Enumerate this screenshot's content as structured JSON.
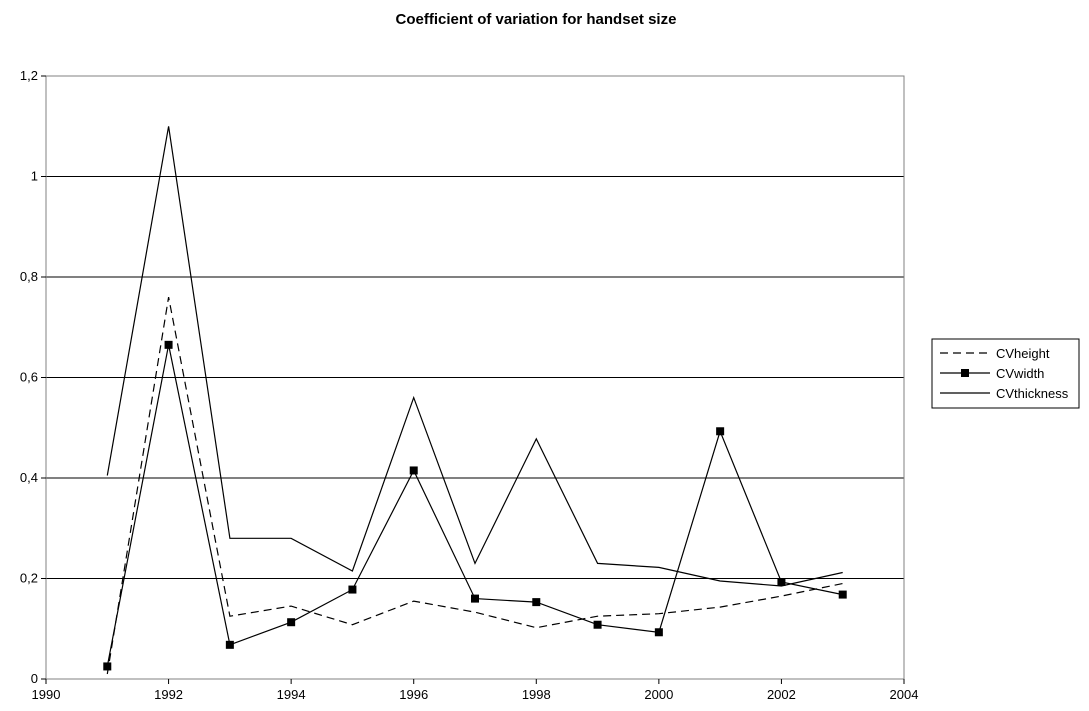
{
  "chart_data": {
    "type": "line",
    "title": "Coefficient of variation for handset size",
    "xlabel": "",
    "ylabel": "",
    "xlim": [
      1990,
      2004
    ],
    "ylim": [
      0,
      1.2
    ],
    "x_ticks": [
      1990,
      1992,
      1994,
      1996,
      1998,
      2000,
      2002,
      2004
    ],
    "y_ticks": [
      0,
      0.2,
      0.4,
      0.6,
      0.8,
      1.0,
      1.2
    ],
    "y_tick_labels": [
      "0",
      "0,2",
      "0,4",
      "0,6",
      "0,8",
      "1",
      "1,2"
    ],
    "grid": "horizontal",
    "legend_position": "right",
    "series": [
      {
        "name": "CVheight",
        "style": "dashed",
        "marker": "none",
        "x": [
          1991,
          1992,
          1993,
          1994,
          1995,
          1996,
          1997,
          1998,
          1999,
          2000,
          2001,
          2002,
          2003
        ],
        "values": [
          0.01,
          0.76,
          0.125,
          0.145,
          0.108,
          0.155,
          0.133,
          0.102,
          0.125,
          0.13,
          0.143,
          0.165,
          0.19
        ]
      },
      {
        "name": "CVwidth",
        "style": "solid",
        "marker": "square",
        "x": [
          1991,
          1992,
          1993,
          1994,
          1995,
          1996,
          1997,
          1998,
          1999,
          2000,
          2001,
          2002,
          2003
        ],
        "values": [
          0.025,
          0.665,
          0.068,
          0.113,
          0.178,
          0.415,
          0.16,
          0.153,
          0.108,
          0.093,
          0.493,
          0.193,
          0.168
        ]
      },
      {
        "name": "CVthickness",
        "style": "solid",
        "marker": "none",
        "x": [
          1991,
          1992,
          1993,
          1994,
          1995,
          1996,
          1997,
          1998,
          1999,
          2000,
          2001,
          2002,
          2003
        ],
        "values": [
          0.405,
          1.1,
          0.28,
          0.28,
          0.215,
          0.56,
          0.23,
          0.478,
          0.23,
          0.222,
          0.195,
          0.185,
          0.212
        ]
      }
    ]
  }
}
